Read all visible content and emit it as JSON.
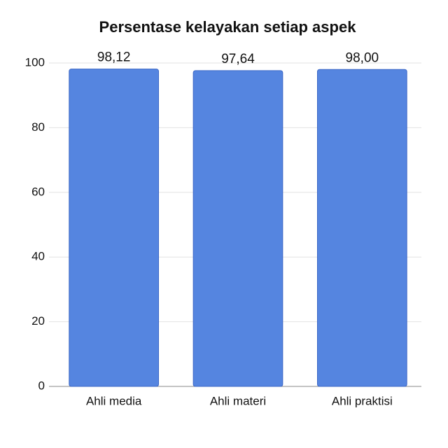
{
  "chart_data": {
    "type": "bar",
    "title": "Persentase kelayakan setiap aspek",
    "categories": [
      "Ahli media",
      "Ahli materi",
      "Ahli praktisi"
    ],
    "values": [
      98.12,
      97.64,
      98.0
    ],
    "value_labels": [
      "98,12",
      "97,64",
      "98,00"
    ],
    "color": "#5585e0",
    "ylim": [
      0,
      100
    ],
    "yticks": [
      0,
      20,
      40,
      60,
      80,
      100
    ],
    "grid": true
  }
}
